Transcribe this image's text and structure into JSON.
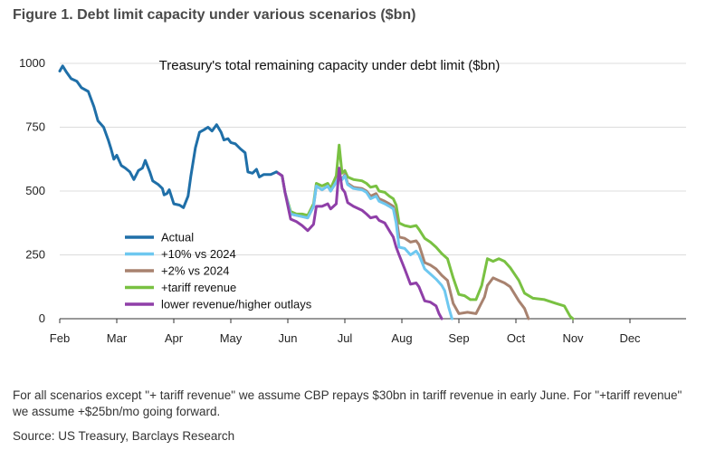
{
  "figure_title": "Figure 1. Debt limit capacity under various scenarios ($bn)",
  "note": "For all scenarios except \"+ tariff revenue\" we assume CBP repays $30bn in tariff revenue in early June. For \"+tariff revenue\" we assume +$25bn/mo going forward.",
  "source": "Source: US Treasury, Barclays Research",
  "chart_data": {
    "type": "line",
    "title": "Treasury's total remaining capacity under debt limit ($bn)",
    "xlabel": "",
    "ylabel": "",
    "x_unit": "month (1 = Feb start)",
    "xlim": [
      1,
      12
    ],
    "ylim": [
      0,
      1000
    ],
    "yticks": [
      0,
      250,
      500,
      750,
      1000
    ],
    "xticks": [
      {
        "x": 1,
        "label": "Feb"
      },
      {
        "x": 2,
        "label": "Mar"
      },
      {
        "x": 3,
        "label": "Apr"
      },
      {
        "x": 4,
        "label": "May"
      },
      {
        "x": 5,
        "label": "Jun"
      },
      {
        "x": 6,
        "label": "Jul"
      },
      {
        "x": 7,
        "label": "Aug"
      },
      {
        "x": 8,
        "label": "Sep"
      },
      {
        "x": 9,
        "label": "Oct"
      },
      {
        "x": 10,
        "label": "Nov"
      },
      {
        "x": 11,
        "label": "Dec"
      }
    ],
    "grid": "horizontal",
    "legend_position": "lower-left",
    "series": [
      {
        "name": "Actual",
        "color": "#1f6fa8",
        "points": [
          [
            1.0,
            970
          ],
          [
            1.05,
            990
          ],
          [
            1.12,
            965
          ],
          [
            1.2,
            940
          ],
          [
            1.3,
            930
          ],
          [
            1.38,
            905
          ],
          [
            1.5,
            890
          ],
          [
            1.6,
            830
          ],
          [
            1.67,
            775
          ],
          [
            1.77,
            750
          ],
          [
            1.85,
            700
          ],
          [
            1.9,
            665
          ],
          [
            1.95,
            625
          ],
          [
            2.0,
            640
          ],
          [
            2.08,
            600
          ],
          [
            2.15,
            590
          ],
          [
            2.23,
            575
          ],
          [
            2.3,
            545
          ],
          [
            2.38,
            580
          ],
          [
            2.45,
            590
          ],
          [
            2.5,
            620
          ],
          [
            2.58,
            575
          ],
          [
            2.63,
            540
          ],
          [
            2.73,
            525
          ],
          [
            2.8,
            510
          ],
          [
            2.83,
            485
          ],
          [
            2.88,
            490
          ],
          [
            2.92,
            505
          ],
          [
            3.0,
            450
          ],
          [
            3.1,
            445
          ],
          [
            3.17,
            435
          ],
          [
            3.25,
            480
          ],
          [
            3.3,
            560
          ],
          [
            3.38,
            670
          ],
          [
            3.45,
            730
          ],
          [
            3.53,
            740
          ],
          [
            3.6,
            750
          ],
          [
            3.67,
            735
          ],
          [
            3.75,
            760
          ],
          [
            3.83,
            730
          ],
          [
            3.88,
            700
          ],
          [
            3.95,
            705
          ],
          [
            4.0,
            690
          ],
          [
            4.08,
            685
          ],
          [
            4.17,
            665
          ],
          [
            4.25,
            650
          ],
          [
            4.3,
            575
          ],
          [
            4.38,
            570
          ],
          [
            4.45,
            585
          ],
          [
            4.5,
            555
          ],
          [
            4.58,
            565
          ],
          [
            4.7,
            565
          ],
          [
            4.8,
            575
          ]
        ]
      },
      {
        "name": "+10% vs 2024",
        "color": "#6ec8f0",
        "points": [
          [
            4.8,
            575
          ],
          [
            4.9,
            560
          ],
          [
            4.95,
            495
          ],
          [
            5.05,
            410
          ],
          [
            5.15,
            405
          ],
          [
            5.25,
            400
          ],
          [
            5.35,
            395
          ],
          [
            5.45,
            440
          ],
          [
            5.5,
            520
          ],
          [
            5.6,
            505
          ],
          [
            5.7,
            520
          ],
          [
            5.75,
            500
          ],
          [
            5.85,
            535
          ],
          [
            5.9,
            560
          ],
          [
            5.95,
            545
          ],
          [
            6.0,
            560
          ],
          [
            6.05,
            525
          ],
          [
            6.15,
            510
          ],
          [
            6.3,
            505
          ],
          [
            6.38,
            495
          ],
          [
            6.45,
            470
          ],
          [
            6.55,
            480
          ],
          [
            6.6,
            460
          ],
          [
            6.7,
            450
          ],
          [
            6.78,
            440
          ],
          [
            6.85,
            430
          ],
          [
            6.9,
            375
          ],
          [
            6.95,
            280
          ],
          [
            7.05,
            275
          ],
          [
            7.15,
            250
          ],
          [
            7.25,
            265
          ],
          [
            7.3,
            250
          ],
          [
            7.4,
            195
          ],
          [
            7.5,
            175
          ],
          [
            7.6,
            155
          ],
          [
            7.7,
            130
          ],
          [
            7.75,
            110
          ],
          [
            7.82,
            45
          ],
          [
            7.88,
            0
          ]
        ]
      },
      {
        "name": "+2% vs 2024",
        "color": "#a8826f",
        "points": [
          [
            4.8,
            575
          ],
          [
            4.9,
            560
          ],
          [
            4.95,
            495
          ],
          [
            5.05,
            410
          ],
          [
            5.15,
            405
          ],
          [
            5.25,
            400
          ],
          [
            5.35,
            395
          ],
          [
            5.45,
            440
          ],
          [
            5.5,
            520
          ],
          [
            5.6,
            505
          ],
          [
            5.7,
            520
          ],
          [
            5.75,
            500
          ],
          [
            5.85,
            535
          ],
          [
            5.9,
            565
          ],
          [
            5.95,
            545
          ],
          [
            6.0,
            565
          ],
          [
            6.05,
            530
          ],
          [
            6.15,
            515
          ],
          [
            6.3,
            510
          ],
          [
            6.38,
            500
          ],
          [
            6.45,
            480
          ],
          [
            6.55,
            490
          ],
          [
            6.6,
            470
          ],
          [
            6.7,
            460
          ],
          [
            6.78,
            450
          ],
          [
            6.85,
            440
          ],
          [
            6.9,
            400
          ],
          [
            6.95,
            320
          ],
          [
            7.05,
            315
          ],
          [
            7.15,
            300
          ],
          [
            7.25,
            305
          ],
          [
            7.3,
            290
          ],
          [
            7.4,
            220
          ],
          [
            7.5,
            210
          ],
          [
            7.6,
            195
          ],
          [
            7.7,
            170
          ],
          [
            7.8,
            150
          ],
          [
            7.9,
            60
          ],
          [
            8.0,
            20
          ],
          [
            8.15,
            25
          ],
          [
            8.3,
            20
          ],
          [
            8.45,
            85
          ],
          [
            8.5,
            130
          ],
          [
            8.6,
            160
          ],
          [
            8.7,
            150
          ],
          [
            8.8,
            140
          ],
          [
            8.9,
            125
          ],
          [
            9.05,
            70
          ],
          [
            9.15,
            40
          ],
          [
            9.22,
            0
          ]
        ]
      },
      {
        "name": "+tariff revenue",
        "color": "#79c142",
        "points": [
          [
            4.8,
            575
          ],
          [
            4.9,
            560
          ],
          [
            4.95,
            495
          ],
          [
            5.05,
            420
          ],
          [
            5.15,
            410
          ],
          [
            5.25,
            410
          ],
          [
            5.35,
            405
          ],
          [
            5.45,
            450
          ],
          [
            5.5,
            530
          ],
          [
            5.6,
            520
          ],
          [
            5.7,
            530
          ],
          [
            5.75,
            510
          ],
          [
            5.85,
            560
          ],
          [
            5.9,
            680
          ],
          [
            5.95,
            570
          ],
          [
            6.0,
            580
          ],
          [
            6.05,
            555
          ],
          [
            6.15,
            545
          ],
          [
            6.3,
            540
          ],
          [
            6.38,
            530
          ],
          [
            6.45,
            515
          ],
          [
            6.55,
            520
          ],
          [
            6.6,
            500
          ],
          [
            6.7,
            495
          ],
          [
            6.78,
            480
          ],
          [
            6.85,
            470
          ],
          [
            6.9,
            445
          ],
          [
            6.95,
            375
          ],
          [
            7.05,
            365
          ],
          [
            7.15,
            360
          ],
          [
            7.25,
            365
          ],
          [
            7.3,
            350
          ],
          [
            7.4,
            315
          ],
          [
            7.5,
            300
          ],
          [
            7.6,
            280
          ],
          [
            7.7,
            255
          ],
          [
            7.8,
            235
          ],
          [
            7.9,
            160
          ],
          [
            8.0,
            95
          ],
          [
            8.1,
            90
          ],
          [
            8.2,
            75
          ],
          [
            8.3,
            75
          ],
          [
            8.4,
            130
          ],
          [
            8.5,
            235
          ],
          [
            8.6,
            225
          ],
          [
            8.7,
            235
          ],
          [
            8.8,
            225
          ],
          [
            8.9,
            200
          ],
          [
            9.05,
            150
          ],
          [
            9.15,
            100
          ],
          [
            9.3,
            80
          ],
          [
            9.5,
            75
          ],
          [
            9.7,
            60
          ],
          [
            9.85,
            50
          ],
          [
            9.95,
            10
          ],
          [
            10.0,
            0
          ]
        ]
      },
      {
        "name": "lower revenue/higher outlays",
        "color": "#8f3fa8",
        "points": [
          [
            4.8,
            575
          ],
          [
            4.9,
            560
          ],
          [
            4.95,
            495
          ],
          [
            5.05,
            390
          ],
          [
            5.15,
            380
          ],
          [
            5.25,
            365
          ],
          [
            5.35,
            345
          ],
          [
            5.45,
            370
          ],
          [
            5.5,
            440
          ],
          [
            5.6,
            440
          ],
          [
            5.7,
            450
          ],
          [
            5.75,
            430
          ],
          [
            5.85,
            450
          ],
          [
            5.9,
            590
          ],
          [
            5.95,
            510
          ],
          [
            6.0,
            495
          ],
          [
            6.05,
            455
          ],
          [
            6.15,
            440
          ],
          [
            6.3,
            425
          ],
          [
            6.38,
            410
          ],
          [
            6.45,
            395
          ],
          [
            6.55,
            400
          ],
          [
            6.6,
            385
          ],
          [
            6.7,
            375
          ],
          [
            6.78,
            345
          ],
          [
            6.85,
            320
          ],
          [
            6.9,
            280
          ],
          [
            6.95,
            250
          ],
          [
            7.05,
            195
          ],
          [
            7.15,
            135
          ],
          [
            7.25,
            140
          ],
          [
            7.3,
            125
          ],
          [
            7.4,
            70
          ],
          [
            7.5,
            65
          ],
          [
            7.6,
            50
          ],
          [
            7.65,
            20
          ],
          [
            7.7,
            0
          ]
        ]
      }
    ]
  }
}
